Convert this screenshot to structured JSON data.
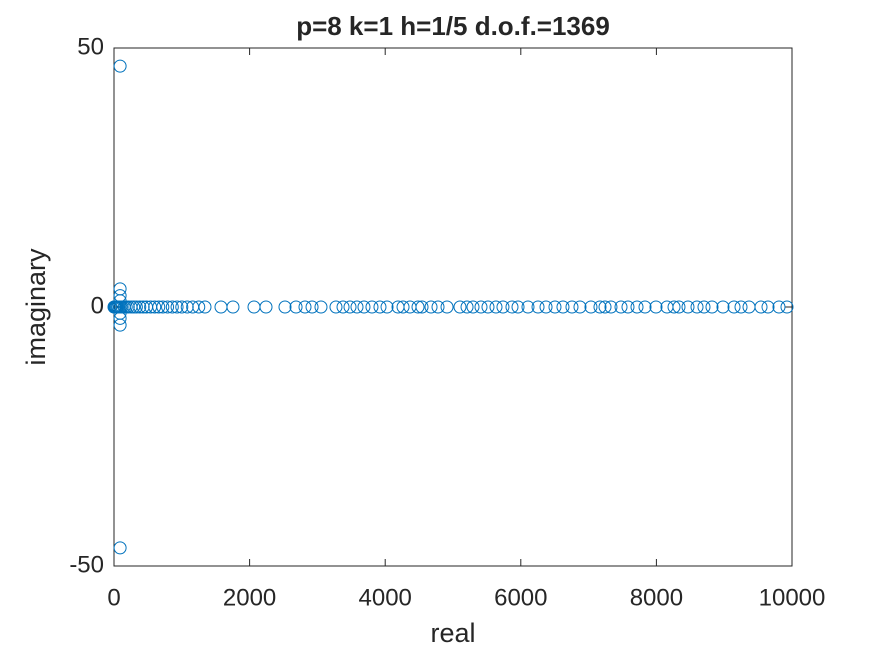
{
  "chart_data": {
    "type": "scatter",
    "title": "p=8 k=1 h=1/5 d.o.f.=1369",
    "x_label": "real",
    "y_label": "imaginary",
    "color": "#0072bd",
    "x": [
      0,
      5,
      10,
      20,
      30,
      45,
      60,
      80,
      100,
      120,
      150,
      180,
      210,
      250,
      290,
      330,
      380,
      430,
      480,
      540,
      600,
      660,
      720,
      790,
      860,
      930,
      1000,
      1080,
      1160,
      1250,
      1342,
      1578,
      1755,
      2065,
      2242,
      2522,
      2685,
      2817,
      2921,
      3053,
      3274,
      3378,
      3481,
      3584,
      3687,
      3805,
      3923,
      4027,
      4189,
      4263,
      4366,
      4484,
      4543,
      4676,
      4779,
      4912,
      5103,
      5207,
      5295,
      5413,
      5516,
      5634,
      5737,
      5870,
      5959,
      6106,
      6254,
      6372,
      6504,
      6622,
      6755,
      6873,
      7035,
      7168,
      7242,
      7330,
      7478,
      7581,
      7714,
      7832,
      7994,
      8156,
      8260,
      8333,
      8466,
      8599,
      8702,
      8820,
      8982,
      9145,
      9248,
      9366,
      9543,
      9646,
      9808,
      9926,
      90,
      90,
      90,
      90,
      90,
      90,
      90,
      90
    ],
    "values": [
      0,
      0,
      0,
      0,
      0,
      0,
      0,
      0,
      0,
      0,
      0,
      0,
      0,
      0,
      0,
      0,
      0,
      0,
      0,
      0,
      0,
      0,
      0,
      0,
      0,
      0,
      0,
      0,
      0,
      0,
      0,
      0,
      0,
      0,
      0,
      0,
      0,
      0,
      0,
      0,
      0,
      0,
      0,
      0,
      0,
      0,
      0,
      0,
      0,
      0,
      0,
      0,
      0,
      0,
      0,
      0,
      0,
      0,
      0,
      0,
      0,
      0,
      0,
      0,
      0,
      0,
      0,
      0,
      0,
      0,
      0,
      0,
      0,
      0,
      0,
      0,
      0,
      0,
      0,
      0,
      0,
      0,
      0,
      0,
      0,
      0,
      0,
      0,
      0,
      0,
      0,
      0,
      0,
      0,
      0,
      0,
      46.5,
      -46.5,
      3.5,
      -3.5,
      2.2,
      -2.2,
      1.2,
      -1.2
    ],
    "xlim": [
      0,
      10000
    ],
    "xticks": [
      0,
      2000,
      4000,
      6000,
      8000,
      10000
    ],
    "ylim": [
      -50,
      50
    ],
    "yticks": [
      -50,
      0,
      50
    ],
    "grid": false
  }
}
